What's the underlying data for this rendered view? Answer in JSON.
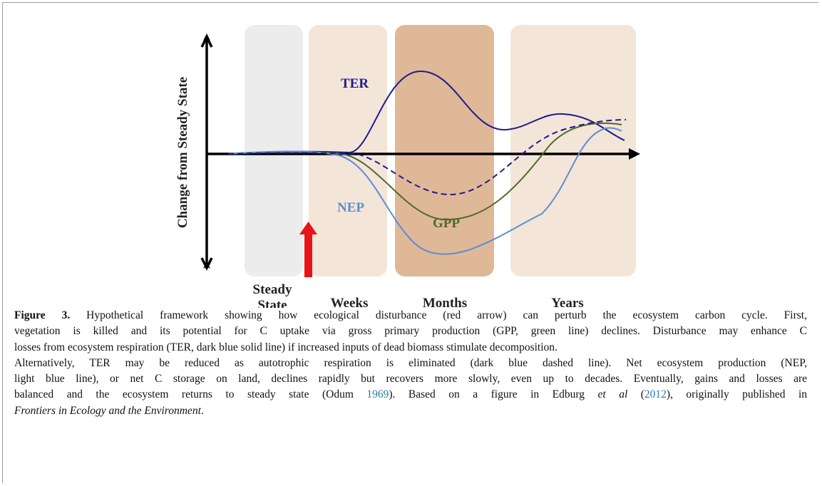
{
  "figure": {
    "y_axis_label": "Change from Steady State",
    "phases": [
      "Steady State",
      "Weeks",
      "Months",
      "Years"
    ],
    "curve_labels": {
      "ter": "TER",
      "nep": "NEP",
      "gpp": "GPP"
    },
    "caption": {
      "lines": [
        [
          "Figure 3.",
          " Hypothetical framework showing how ecological disturbance (red arrow) can perturb the ecosystem carbon cycle. First,"
        ],
        [
          "vegetation is killed and its potential for C uptake via gross primary production (GPP, green line) declines. Disturbance may enhance C"
        ],
        [
          "losses from ecosystem respiration (TER, dark blue solid line) if increased inputs of dead biomass stimulate decomposition."
        ],
        [
          "Alternatively, TER may be reduced as autotrophic respiration is eliminated (dark blue dashed line). Net ecosystem production (NEP,"
        ],
        [
          "light blue line), or net C storage on land, declines rapidly but recovers more slowly, even up to decades. Eventually, gains and losses are"
        ],
        [
          "balanced and the ecosystem returns to steady state (Odum ",
          "1969",
          "). Based on a figure in Edburg ",
          "et al",
          " (",
          "2012",
          "), originally published in"
        ],
        [
          "Frontiers in Ecology and the Environment",
          "."
        ]
      ]
    }
  }
}
